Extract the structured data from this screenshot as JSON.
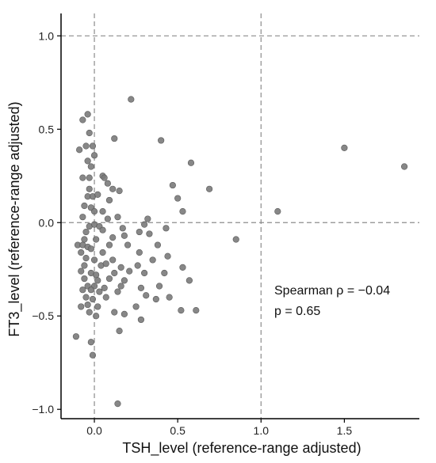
{
  "chart_data": {
    "type": "scatter",
    "xlabel": "TSH_level (reference-range adjusted)",
    "ylabel": "FT3_level (reference-range adjusted)",
    "xlim": [
      -0.2,
      1.95
    ],
    "ylim": [
      -1.05,
      1.12
    ],
    "x_ticks": [
      0.0,
      0.5,
      1.0,
      1.5
    ],
    "x_tick_labels": [
      "0.0",
      "0.5",
      "1.0",
      "1.5"
    ],
    "y_ticks": [
      -1.0,
      -0.5,
      0.0,
      0.5,
      1.0
    ],
    "y_tick_labels": [
      "−1.0",
      "−0.5",
      "0.0",
      "0.5",
      "1.0"
    ],
    "reference_lines": {
      "vertical": [
        0.0,
        1.0
      ],
      "horizontal": [
        0.0,
        1.0
      ]
    },
    "grid": false,
    "annotations": [
      "Spearman ρ = −0.04",
      "p = 0.65"
    ],
    "point_color": "#7a7a7a",
    "points": [
      [
        0.22,
        0.66
      ],
      [
        -0.04,
        0.58
      ],
      [
        -0.07,
        0.55
      ],
      [
        -0.03,
        0.48
      ],
      [
        0.4,
        0.44
      ],
      [
        0.12,
        0.45
      ],
      [
        -0.05,
        0.41
      ],
      [
        -0.01,
        0.41
      ],
      [
        -0.09,
        0.39
      ],
      [
        1.5,
        0.4
      ],
      [
        0.0,
        0.36
      ],
      [
        -0.04,
        0.33
      ],
      [
        0.58,
        0.32
      ],
      [
        -0.02,
        0.3
      ],
      [
        1.86,
        0.3
      ],
      [
        -0.07,
        0.24
      ],
      [
        -0.03,
        0.24
      ],
      [
        0.05,
        0.25
      ],
      [
        0.06,
        0.24
      ],
      [
        0.08,
        0.21
      ],
      [
        0.47,
        0.2
      ],
      [
        -0.03,
        0.18
      ],
      [
        0.69,
        0.18
      ],
      [
        0.11,
        0.18
      ],
      [
        0.15,
        0.17
      ],
      [
        -0.04,
        0.14
      ],
      [
        -0.01,
        0.14
      ],
      [
        0.02,
        0.15
      ],
      [
        0.09,
        0.12
      ],
      [
        0.5,
        0.13
      ],
      [
        -0.06,
        0.09
      ],
      [
        -0.02,
        0.08
      ],
      [
        0.0,
        0.06
      ],
      [
        0.05,
        0.06
      ],
      [
        1.1,
        0.06
      ],
      [
        0.53,
        0.06
      ],
      [
        -0.07,
        0.03
      ],
      [
        0.08,
        0.02
      ],
      [
        0.14,
        0.03
      ],
      [
        0.32,
        0.02
      ],
      [
        -0.03,
        -0.02
      ],
      [
        0.0,
        -0.01
      ],
      [
        0.03,
        -0.02
      ],
      [
        0.3,
        -0.01
      ],
      [
        0.17,
        -0.03
      ],
      [
        0.43,
        -0.03
      ],
      [
        -0.05,
        -0.05
      ],
      [
        0.05,
        -0.04
      ],
      [
        0.27,
        -0.05
      ],
      [
        0.33,
        -0.06
      ],
      [
        0.18,
        -0.07
      ],
      [
        -0.06,
        -0.09
      ],
      [
        0.01,
        -0.09
      ],
      [
        0.11,
        -0.08
      ],
      [
        0.85,
        -0.09
      ],
      [
        -0.1,
        -0.12
      ],
      [
        -0.07,
        -0.12
      ],
      [
        -0.04,
        -0.13
      ],
      [
        -0.02,
        -0.14
      ],
      [
        0.09,
        -0.12
      ],
      [
        0.2,
        -0.12
      ],
      [
        0.38,
        -0.12
      ],
      [
        -0.08,
        -0.16
      ],
      [
        0.05,
        -0.16
      ],
      [
        0.27,
        -0.16
      ],
      [
        -0.05,
        -0.19
      ],
      [
        0.0,
        -0.2
      ],
      [
        0.11,
        -0.2
      ],
      [
        0.35,
        -0.2
      ],
      [
        0.44,
        -0.18
      ],
      [
        -0.06,
        -0.23
      ],
      [
        0.04,
        -0.23
      ],
      [
        0.07,
        -0.22
      ],
      [
        0.16,
        -0.24
      ],
      [
        0.26,
        -0.23
      ],
      [
        -0.08,
        -0.26
      ],
      [
        -0.02,
        -0.27
      ],
      [
        0.01,
        -0.28
      ],
      [
        0.12,
        -0.27
      ],
      [
        0.21,
        -0.26
      ],
      [
        0.3,
        -0.27
      ],
      [
        0.42,
        -0.27
      ],
      [
        0.53,
        -0.24
      ],
      [
        -0.06,
        -0.3
      ],
      [
        0.02,
        -0.31
      ],
      [
        0.09,
        -0.3
      ],
      [
        0.18,
        -0.31
      ],
      [
        0.57,
        -0.31
      ],
      [
        -0.04,
        -0.34
      ],
      [
        0.0,
        -0.34
      ],
      [
        0.06,
        -0.35
      ],
      [
        0.16,
        -0.34
      ],
      [
        0.28,
        -0.35
      ],
      [
        0.39,
        -0.34
      ],
      [
        -0.07,
        -0.36
      ],
      [
        -0.02,
        -0.36
      ],
      [
        0.03,
        -0.37
      ],
      [
        0.14,
        -0.37
      ],
      [
        0.31,
        -0.39
      ],
      [
        0.45,
        -0.4
      ],
      [
        -0.05,
        -0.4
      ],
      [
        -0.01,
        -0.41
      ],
      [
        0.07,
        -0.4
      ],
      [
        0.37,
        -0.41
      ],
      [
        -0.08,
        -0.45
      ],
      [
        -0.04,
        -0.44
      ],
      [
        0.02,
        -0.45
      ],
      [
        0.25,
        -0.45
      ],
      [
        0.52,
        -0.47
      ],
      [
        0.61,
        -0.47
      ],
      [
        -0.03,
        -0.48
      ],
      [
        0.01,
        -0.5
      ],
      [
        0.12,
        -0.48
      ],
      [
        0.18,
        -0.49
      ],
      [
        0.28,
        -0.52
      ],
      [
        0.15,
        -0.58
      ],
      [
        -0.11,
        -0.61
      ],
      [
        -0.02,
        -0.64
      ],
      [
        -0.01,
        -0.71
      ],
      [
        0.14,
        -0.97
      ]
    ]
  }
}
